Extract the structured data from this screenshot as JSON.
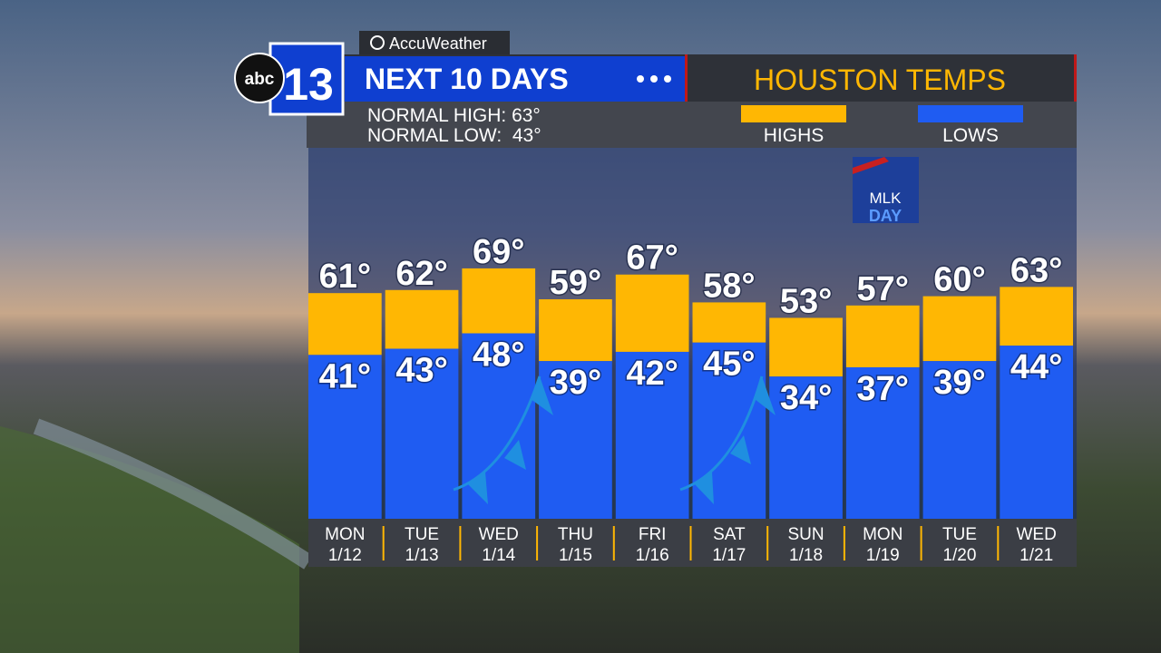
{
  "brand": {
    "network": "abc",
    "channel": "13",
    "provider": "AccuWeather"
  },
  "badge": {
    "line1": "MLK",
    "line2": "DAY"
  },
  "chart_data": {
    "type": "range-bar",
    "title": "NEXT 10 DAYS",
    "subtitle": "HOUSTON TEMPS",
    "notes": [
      "NORMAL HIGH: 63°",
      "NORMAL LOW:  43°"
    ],
    "categories": [
      "MON",
      "TUE",
      "WED",
      "THU",
      "FRI",
      "SAT",
      "SUN",
      "MON",
      "TUE",
      "WED"
    ],
    "dates": [
      "1/12",
      "1/13",
      "1/14",
      "1/15",
      "1/16",
      "1/17",
      "1/18",
      "1/19",
      "1/20",
      "1/21"
    ],
    "ylim": [
      -12,
      108
    ],
    "series": [
      {
        "name": "HIGHS",
        "color": "#ffb703",
        "values": [
          61,
          62,
          69,
          59,
          67,
          58,
          53,
          57,
          60,
          63
        ],
        "value_labels": [
          "61°",
          "62°",
          "69°",
          "59°",
          "67°",
          "58°",
          "53°",
          "57°",
          "60°",
          "63°"
        ]
      },
      {
        "name": "LOWS",
        "color": "#1f5cf2",
        "values": [
          41,
          43,
          48,
          39,
          42,
          45,
          34,
          37,
          39,
          44
        ],
        "value_labels": [
          "41°",
          "43°",
          "48°",
          "39°",
          "42°",
          "45°",
          "34°",
          "37°",
          "39°",
          "44°"
        ]
      }
    ]
  }
}
